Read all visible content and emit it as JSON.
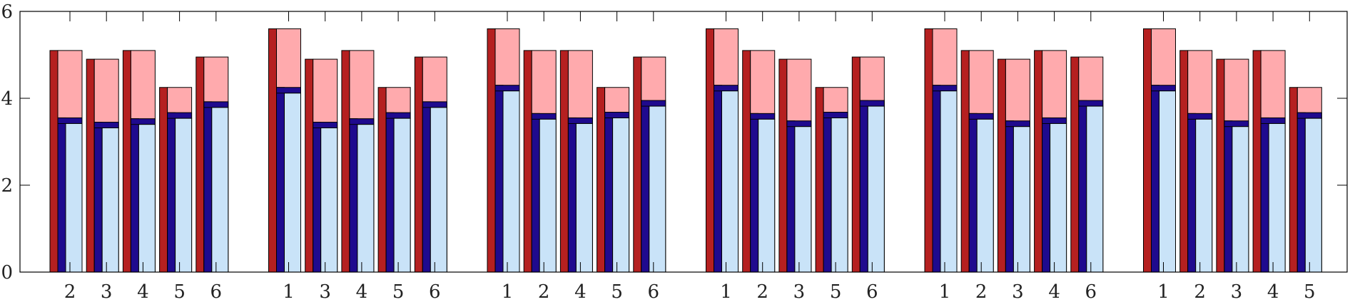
{
  "chart_data": {
    "type": "bar",
    "stacked_overlay": true,
    "colors": {
      "outer_dark": "#b52020",
      "outer_light": "#ffaaad",
      "inner_dark": "#1f0a8e",
      "inner_light": "#c9e3f8",
      "frame": "#000000",
      "background": "#ffffff"
    },
    "ylim": [
      0,
      6
    ],
    "yticks": [
      "0",
      "2",
      "4",
      "6"
    ],
    "grid": false,
    "legend": "none",
    "groups": [
      {
        "categories": [
          "2",
          "3",
          "4",
          "5",
          "6"
        ],
        "outer_values": [
          5.1,
          4.9,
          5.1,
          4.25,
          4.95
        ],
        "inner_values": [
          3.55,
          3.45,
          3.53,
          3.67,
          3.92
        ]
      },
      {
        "categories": [
          "1",
          "3",
          "4",
          "5",
          "6"
        ],
        "outer_values": [
          5.6,
          4.9,
          5.1,
          4.25,
          4.95
        ],
        "inner_values": [
          4.25,
          3.45,
          3.53,
          3.67,
          3.92
        ]
      },
      {
        "categories": [
          "1",
          "2",
          "4",
          "5",
          "6"
        ],
        "outer_values": [
          5.6,
          5.1,
          5.1,
          4.25,
          4.95
        ],
        "inner_values": [
          4.3,
          3.65,
          3.55,
          3.68,
          3.95
        ]
      },
      {
        "categories": [
          "1",
          "2",
          "3",
          "5",
          "6"
        ],
        "outer_values": [
          5.6,
          5.1,
          4.9,
          4.25,
          4.95
        ],
        "inner_values": [
          4.3,
          3.65,
          3.48,
          3.68,
          3.95
        ]
      },
      {
        "categories": [
          "1",
          "2",
          "3",
          "4",
          "6"
        ],
        "outer_values": [
          5.6,
          5.1,
          4.9,
          5.1,
          4.95
        ],
        "inner_values": [
          4.3,
          3.65,
          3.48,
          3.55,
          3.95
        ]
      },
      {
        "categories": [
          "1",
          "2",
          "3",
          "4",
          "5"
        ],
        "outer_values": [
          5.6,
          5.1,
          4.9,
          5.1,
          4.25
        ],
        "inner_values": [
          4.3,
          3.65,
          3.48,
          3.55,
          3.67
        ]
      }
    ]
  }
}
